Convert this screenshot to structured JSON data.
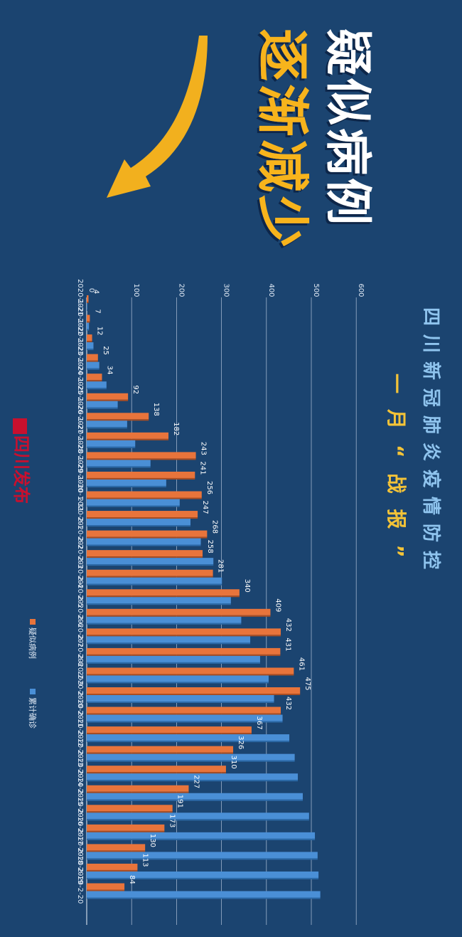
{
  "headline": {
    "line1": "疑似病例",
    "line2": "逐渐减少"
  },
  "subtitle": {
    "line1": "四川新冠肺炎疫情防控",
    "line2": "一月“战报”"
  },
  "logo_text": "四川发布",
  "colors": {
    "background": "#1b4470",
    "suspected": "#e8743b",
    "confirmed": "#4a8fd6",
    "headline_white": "#ffffff",
    "headline_yellow": "#f7b41d",
    "arrow": "#f2b01e",
    "subtitle_blue": "#8fc4ee",
    "subtitle_yellow": "#f3c338",
    "logo_red": "#c8102e"
  },
  "chart_data": {
    "type": "bar",
    "orientation": "horizontal",
    "categories": [
      "2020-1-21",
      "2020-1-22",
      "2020-1-23",
      "2020-1-24",
      "2020-1-25",
      "2020-1-26",
      "2020-1-27",
      "2020-1-28",
      "2020-1-29",
      "2020-1-30",
      "2020-1-31",
      "2020-2-1",
      "2020-2-2",
      "2020-2-3",
      "2020-2-4",
      "2020-2-5",
      "2020-2-6",
      "2020-2-7",
      "2020-2-8",
      "2020-2-9",
      "2020-2-10",
      "2020-2-11",
      "2020-2-12",
      "2020-2-13",
      "2020-2-14",
      "2020-2-15",
      "2020-2-16",
      "2020-2-17",
      "2020-2-18",
      "2020-2-19",
      "2020-2-20"
    ],
    "series": [
      {
        "name": "疑似病例",
        "color": "#e8743b",
        "values": [
          4,
          7,
          12,
          25,
          34,
          92,
          138,
          182,
          243,
          241,
          256,
          247,
          268,
          258,
          281,
          340,
          409,
          432,
          431,
          461,
          475,
          432,
          367,
          326,
          310,
          227,
          191,
          173,
          130,
          113,
          84
        ]
      },
      {
        "name": "累计确诊",
        "color": "#4a8fd6",
        "values": [
          1,
          5,
          15,
          28,
          44,
          69,
          90,
          108,
          142,
          177,
          207,
          231,
          254,
          282,
          301,
          321,
          344,
          364,
          386,
          405,
          417,
          436,
          451,
          463,
          470,
          481,
          495,
          508,
          514,
          516,
          520
        ]
      }
    ],
    "axis_ticks": [
      "0",
      "100",
      "200",
      "300",
      "400",
      "500",
      "600"
    ],
    "xlim": [
      0,
      600
    ],
    "grid": true,
    "legend_position": "bottom"
  }
}
